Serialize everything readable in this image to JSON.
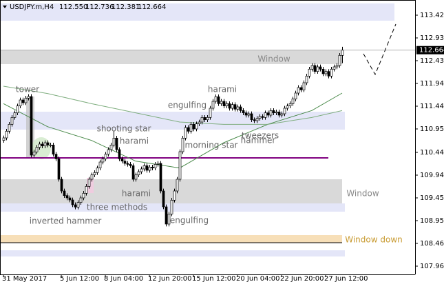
{
  "chart_data": {
    "type": "candlestick",
    "header": {
      "symbol": "USDJPY.m,H4",
      "ohlc_labels": [
        "112.550",
        "112.736",
        "112.381",
        "112.664"
      ]
    },
    "candles": [
      [
        110.7,
        110.805,
        110.65,
        110.755
      ],
      [
        110.755,
        110.95,
        110.705,
        110.9
      ],
      [
        110.9,
        111.1,
        110.85,
        111.05
      ],
      [
        111.05,
        111.25,
        111.0,
        111.2
      ],
      [
        111.2,
        111.35,
        111.15,
        111.3
      ],
      [
        111.3,
        111.5,
        111.25,
        111.45
      ],
      [
        111.45,
        111.63,
        111.4,
        111.58
      ],
      [
        111.58,
        111.63,
        111.47,
        111.52
      ],
      [
        111.52,
        111.67,
        111.47,
        111.62
      ],
      [
        111.62,
        111.705,
        111.57,
        111.655
      ],
      [
        111.655,
        111.705,
        110.33,
        110.38
      ],
      [
        110.38,
        110.5,
        110.33,
        110.45
      ],
      [
        110.45,
        110.6,
        110.4,
        110.55
      ],
      [
        110.55,
        110.67,
        110.5,
        110.62
      ],
      [
        110.62,
        110.67,
        110.53,
        110.58
      ],
      [
        110.58,
        110.7,
        110.53,
        110.65
      ],
      [
        110.65,
        110.7,
        110.55,
        110.6
      ],
      [
        110.6,
        110.65,
        110.55,
        110.6
      ],
      [
        110.6,
        110.65,
        110.35,
        110.4
      ],
      [
        110.4,
        110.45,
        110.25,
        110.3
      ],
      [
        110.3,
        110.35,
        109.805,
        109.855
      ],
      [
        109.855,
        109.905,
        109.55,
        109.6
      ],
      [
        109.6,
        109.65,
        109.45,
        109.5
      ],
      [
        109.5,
        109.55,
        109.4,
        109.45
      ],
      [
        109.45,
        109.5,
        109.355,
        109.405
      ],
      [
        109.405,
        109.455,
        109.25,
        109.3
      ],
      [
        109.3,
        109.35,
        109.2,
        109.25
      ],
      [
        109.25,
        109.4,
        109.2,
        109.35
      ],
      [
        109.35,
        109.5,
        109.3,
        109.45
      ],
      [
        109.45,
        109.6,
        109.4,
        109.55
      ],
      [
        109.55,
        109.75,
        109.5,
        109.7
      ],
      [
        109.7,
        109.905,
        109.65,
        109.855
      ],
      [
        109.855,
        110.0,
        109.805,
        109.95
      ],
      [
        109.95,
        110.05,
        109.9,
        110.0
      ],
      [
        110.0,
        110.15,
        109.95,
        110.1
      ],
      [
        110.1,
        110.28,
        110.05,
        110.23
      ],
      [
        110.23,
        110.35,
        110.18,
        110.3
      ],
      [
        110.3,
        110.45,
        110.25,
        110.4
      ],
      [
        110.4,
        110.55,
        110.35,
        110.5
      ],
      [
        110.5,
        110.65,
        110.45,
        110.6
      ],
      [
        110.6,
        110.9,
        110.55,
        110.75
      ],
      [
        110.75,
        110.8,
        110.45,
        110.5
      ],
      [
        110.5,
        110.55,
        110.25,
        110.3
      ],
      [
        110.3,
        110.35,
        110.2,
        110.25
      ],
      [
        110.25,
        110.3,
        110.15,
        110.2
      ],
      [
        110.2,
        110.25,
        110.13,
        110.18
      ],
      [
        110.18,
        110.23,
        110.1,
        110.15
      ],
      [
        110.15,
        110.2,
        109.805,
        109.855
      ],
      [
        109.855,
        110.0,
        109.805,
        109.95
      ],
      [
        109.95,
        110.07,
        109.9,
        110.02
      ],
      [
        110.02,
        110.13,
        109.97,
        110.08
      ],
      [
        110.08,
        110.2,
        110.03,
        110.15
      ],
      [
        110.15,
        110.2,
        110.0,
        110.05
      ],
      [
        110.05,
        110.17,
        110.0,
        110.12
      ],
      [
        110.12,
        110.17,
        110.05,
        110.1
      ],
      [
        110.1,
        110.23,
        110.05,
        110.18
      ],
      [
        110.18,
        110.25,
        110.13,
        110.2
      ],
      [
        110.2,
        110.25,
        109.55,
        109.6
      ],
      [
        109.6,
        109.65,
        109.205,
        109.255
      ],
      [
        109.255,
        109.305,
        108.83,
        108.88
      ],
      [
        108.88,
        109.15,
        108.83,
        109.1
      ],
      [
        109.1,
        109.45,
        109.05,
        109.4
      ],
      [
        109.4,
        109.65,
        109.35,
        109.6
      ],
      [
        109.6,
        109.905,
        109.55,
        109.855
      ],
      [
        109.855,
        110.505,
        109.805,
        110.455
      ],
      [
        110.455,
        110.8,
        110.405,
        110.75
      ],
      [
        110.75,
        111.03,
        110.7,
        110.98
      ],
      [
        110.98,
        111.03,
        110.85,
        110.9
      ],
      [
        110.9,
        111.1,
        110.85,
        111.05
      ],
      [
        111.05,
        111.1,
        110.9,
        110.95
      ],
      [
        110.95,
        111.11,
        110.9,
        111.06
      ],
      [
        111.06,
        111.15,
        111.01,
        111.1
      ],
      [
        111.1,
        111.25,
        111.05,
        111.2
      ],
      [
        111.2,
        111.25,
        111.1,
        111.15
      ],
      [
        111.15,
        111.25,
        111.1,
        111.2
      ],
      [
        111.2,
        111.45,
        111.15,
        111.4
      ],
      [
        111.4,
        111.6,
        111.35,
        111.55
      ],
      [
        111.55,
        111.7,
        111.5,
        111.65
      ],
      [
        111.65,
        111.7,
        111.45,
        111.5
      ],
      [
        111.5,
        111.6,
        111.45,
        111.55
      ],
      [
        111.55,
        111.6,
        111.4,
        111.45
      ],
      [
        111.45,
        111.55,
        111.4,
        111.5
      ],
      [
        111.5,
        111.55,
        111.35,
        111.4
      ],
      [
        111.4,
        111.53,
        111.35,
        111.48
      ],
      [
        111.48,
        111.53,
        111.33,
        111.38
      ],
      [
        111.38,
        111.48,
        111.33,
        111.43
      ],
      [
        111.43,
        111.48,
        111.3,
        111.35
      ],
      [
        111.35,
        111.4,
        111.25,
        111.3
      ],
      [
        111.3,
        111.35,
        111.2,
        111.25
      ],
      [
        111.25,
        111.33,
        111.2,
        111.28
      ],
      [
        111.28,
        111.33,
        111.1,
        111.15
      ],
      [
        111.15,
        111.2,
        111.08,
        111.13
      ],
      [
        111.13,
        111.23,
        111.08,
        111.18
      ],
      [
        111.18,
        111.27,
        111.13,
        111.22
      ],
      [
        111.22,
        111.27,
        111.15,
        111.2
      ],
      [
        111.2,
        111.35,
        111.15,
        111.3
      ],
      [
        111.3,
        111.35,
        111.2,
        111.25
      ],
      [
        111.25,
        111.4,
        111.2,
        111.35
      ],
      [
        111.35,
        111.4,
        111.25,
        111.3
      ],
      [
        111.3,
        111.37,
        111.25,
        111.32
      ],
      [
        111.32,
        111.37,
        111.2,
        111.25
      ],
      [
        111.25,
        111.33,
        111.2,
        111.28
      ],
      [
        111.28,
        111.45,
        111.23,
        111.4
      ],
      [
        111.4,
        111.5,
        111.35,
        111.45
      ],
      [
        111.45,
        111.55,
        111.4,
        111.5
      ],
      [
        111.5,
        111.65,
        111.45,
        111.6
      ],
      [
        111.6,
        111.78,
        111.55,
        111.73
      ],
      [
        111.73,
        111.9,
        111.68,
        111.85
      ],
      [
        111.85,
        111.9,
        111.75,
        111.8
      ],
      [
        111.8,
        112.005,
        111.75,
        111.955
      ],
      [
        111.955,
        112.15,
        111.905,
        112.1
      ],
      [
        112.1,
        112.3,
        112.05,
        112.25
      ],
      [
        112.25,
        112.38,
        112.2,
        112.33
      ],
      [
        112.33,
        112.38,
        112.15,
        112.2
      ],
      [
        112.2,
        112.35,
        112.15,
        112.3
      ],
      [
        112.3,
        112.35,
        112.2,
        112.25
      ],
      [
        112.25,
        112.3,
        112.1,
        112.15
      ],
      [
        112.15,
        112.25,
        112.1,
        112.2
      ],
      [
        112.2,
        112.25,
        112.05,
        112.1
      ],
      [
        112.1,
        112.3,
        112.05,
        112.25
      ],
      [
        112.25,
        112.35,
        112.2,
        112.3
      ],
      [
        112.3,
        112.38,
        112.25,
        112.33
      ],
      [
        112.33,
        112.6,
        112.28,
        112.55
      ],
      [
        112.55,
        112.736,
        112.381,
        112.664
      ]
    ],
    "ma_fast": {
      "index": [
        0,
        16,
        32,
        48,
        64,
        80,
        96,
        112,
        123
      ],
      "values": [
        111.5,
        111.0,
        110.7,
        110.25,
        110.1,
        110.65,
        111.05,
        111.35,
        111.73
      ],
      "color": "#4a8a4a"
    },
    "ma_slow": {
      "index": [
        0,
        16,
        32,
        48,
        64,
        80,
        96,
        112,
        123
      ],
      "values": [
        111.88,
        111.72,
        111.5,
        111.3,
        111.1,
        111.05,
        111.05,
        111.2,
        111.35
      ],
      "color": "#7fae7f"
    },
    "zones": [
      {
        "from": 113.68,
        "to": 113.305,
        "end": 142,
        "color": "#e4e6f8"
      },
      {
        "from": 112.66,
        "to": 112.36,
        "end": 123,
        "color": "#d9d9d9"
      },
      {
        "from": 111.325,
        "to": 110.935,
        "end": 124,
        "color": "#e4e6f8"
      },
      {
        "from": 109.855,
        "to": 109.33,
        "end": 123,
        "color": "#d9d9d9"
      },
      {
        "from": 109.33,
        "to": 109.15,
        "end": 124,
        "color": "#e4e6f8"
      },
      {
        "from": 108.64,
        "to": 108.475,
        "end": 123,
        "color": "#f7dfb8"
      },
      {
        "from": 108.31,
        "to": 108.175,
        "end": 124,
        "color": "#e4e6f8"
      }
    ],
    "levels": [
      {
        "value": 110.32,
        "end": 118,
        "color": "#800080"
      },
      {
        "value": 108.475,
        "end": 123,
        "color": "#000000"
      }
    ],
    "annotations": [
      "Window",
      "tower",
      "harami",
      "engulfing",
      "shooting star",
      "harami",
      "morning star",
      "tweezers",
      "hammer",
      "harami",
      "three methods",
      "inverted hammer",
      "engulfing",
      "Window",
      "Window down"
    ],
    "x_labels": [
      {
        "index": 0,
        "label": "31 May 2017"
      },
      {
        "index": 21,
        "label": "5 Jun 12:00"
      },
      {
        "index": 37,
        "label": "8 Jun 04:00"
      },
      {
        "index": 53,
        "label": "12 Jun 20:00"
      },
      {
        "index": 69,
        "label": "15 Jun 12:00"
      },
      {
        "index": 85,
        "label": "20 Jun 04:00"
      },
      {
        "index": 101,
        "label": "22 Jun 20:00"
      },
      {
        "index": 117,
        "label": "27 Jun 12:00"
      }
    ],
    "ylim": [
      107.785,
      113.755
    ],
    "yticks": [
      113.425,
      {
        "value": 112.93,
        "label": "112.930"
      },
      112.435,
      {
        "value": 111.94,
        "label": "111.940"
      },
      111.445,
      {
        "value": 110.95,
        "label": "110.950"
      },
      {
        "value": 110.44,
        "label": "110.440"
      },
      109.945,
      {
        "value": 109.45,
        "label": "109.450"
      },
      108.955,
      {
        "value": 108.46,
        "label": "108.460"
      },
      107.965
    ]
  }
}
